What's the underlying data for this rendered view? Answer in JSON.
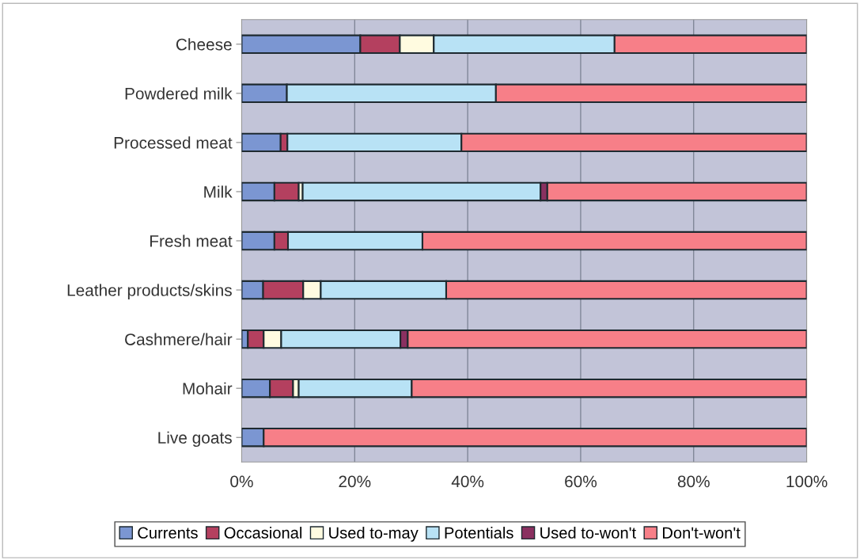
{
  "chart_data": {
    "type": "bar",
    "orientation": "horizontal",
    "stacked": true,
    "categories": [
      "Cheese",
      "Powdered milk",
      "Processed meat",
      "Milk",
      "Fresh meat",
      "Leather products/skins",
      "Cashmere/hair",
      "Mohair",
      "Live goats"
    ],
    "series": [
      {
        "name": "Currents",
        "color": "#7b96d2",
        "values": [
          21,
          8,
          6.9,
          5.8,
          5.8,
          3.8,
          1.1,
          5,
          3.9
        ]
      },
      {
        "name": "Occasional",
        "color": "#b4405f",
        "values": [
          7,
          0,
          1.2,
          4.3,
          2.4,
          7.1,
          2.8,
          4.1,
          0
        ]
      },
      {
        "name": "Used to-may",
        "color": "#fffbe0",
        "values": [
          6,
          0,
          0,
          0.7,
          0,
          3.1,
          3.1,
          1,
          0
        ]
      },
      {
        "name": "Potentials",
        "color": "#b8e2f5",
        "values": [
          32,
          37,
          30.8,
          42.1,
          23.8,
          22.2,
          21.1,
          20,
          0
        ]
      },
      {
        "name": "Used to-won't",
        "color": "#8a3060",
        "values": [
          0,
          0,
          0,
          1.2,
          0,
          0,
          1.3,
          0,
          0
        ]
      },
      {
        "name": "Don't-won't",
        "color": "#f77f88",
        "values": [
          34,
          55,
          61.1,
          45.9,
          68,
          63.8,
          70.6,
          69.9,
          96.1
        ]
      }
    ],
    "xlim": [
      0,
      100
    ],
    "xticks": [
      {
        "value": 0,
        "label": "0%"
      },
      {
        "value": 20,
        "label": "20%"
      },
      {
        "value": 40,
        "label": "40%"
      },
      {
        "value": 60,
        "label": "60%"
      },
      {
        "value": 80,
        "label": "80%"
      },
      {
        "value": 100,
        "label": "100%"
      }
    ],
    "grid": "x",
    "legend": "bottom"
  }
}
